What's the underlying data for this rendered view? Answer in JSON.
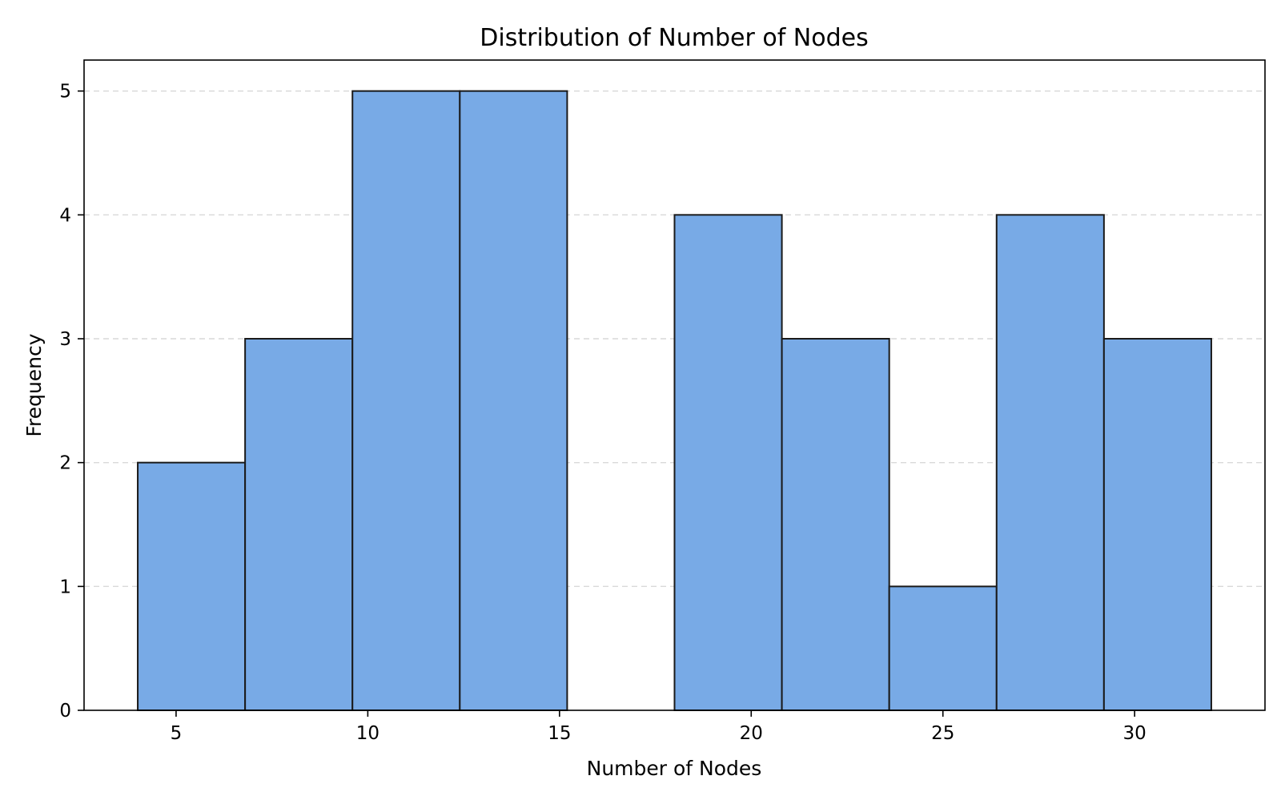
{
  "chart_data": {
    "type": "bar",
    "title": "Distribution of Number of Nodes",
    "xlabel": "Number of Nodes",
    "ylabel": "Frequency",
    "xlim": [
      2.6,
      33.4
    ],
    "ylim": [
      0,
      5.25
    ],
    "xticks": [
      5,
      10,
      15,
      20,
      25,
      30
    ],
    "yticks": [
      0,
      1,
      2,
      3,
      4,
      5
    ],
    "grid": "y-dashed",
    "bar_color": "#78aae6",
    "edge_color": "#1a1a1a",
    "bins": [
      {
        "start": 4.0,
        "end": 6.8,
        "value": 2
      },
      {
        "start": 6.8,
        "end": 9.6,
        "value": 3
      },
      {
        "start": 9.6,
        "end": 12.4,
        "value": 5
      },
      {
        "start": 12.4,
        "end": 15.2,
        "value": 5
      },
      {
        "start": 15.2,
        "end": 18.0,
        "value": 0
      },
      {
        "start": 18.0,
        "end": 20.8,
        "value": 4
      },
      {
        "start": 20.8,
        "end": 23.6,
        "value": 3
      },
      {
        "start": 23.6,
        "end": 26.4,
        "value": 1
      },
      {
        "start": 26.4,
        "end": 29.2,
        "value": 4
      },
      {
        "start": 29.2,
        "end": 32.0,
        "value": 3
      }
    ]
  }
}
